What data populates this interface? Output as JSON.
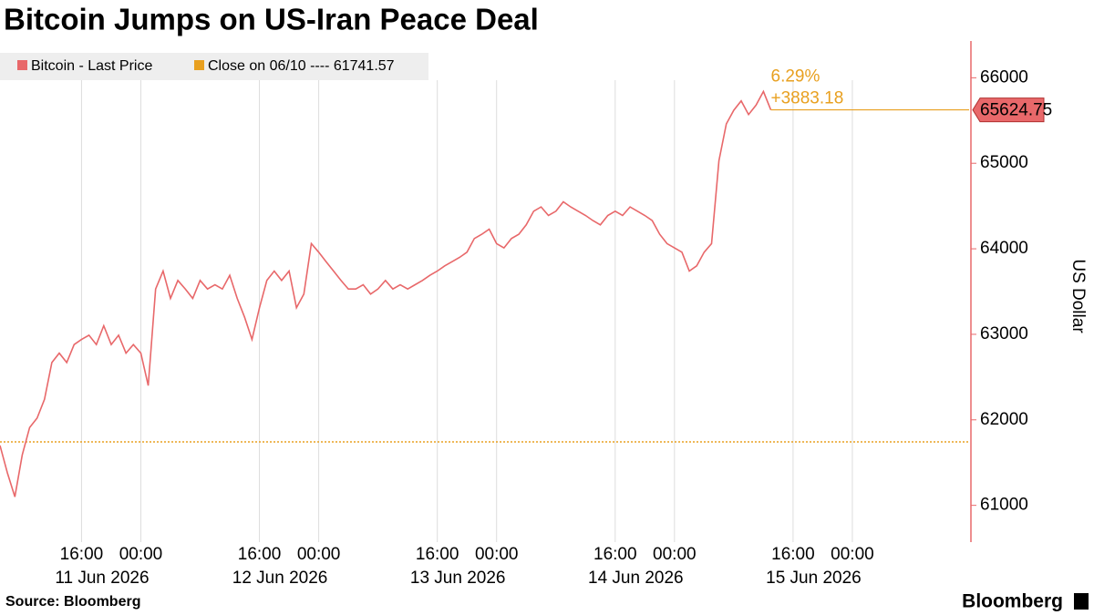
{
  "chart_data": {
    "type": "line",
    "title": "Bitcoin Jumps on US-Iran Peace Deal",
    "y_label": "US Dollar",
    "source": "Source: Bloomberg",
    "brand": "Bloomberg",
    "x": [
      "2026-06-11 05:00",
      "2026-06-11 06:00",
      "2026-06-11 07:00",
      "2026-06-11 08:00",
      "2026-06-11 09:00",
      "2026-06-11 10:00",
      "2026-06-11 11:00",
      "2026-06-11 12:00",
      "2026-06-11 13:00",
      "2026-06-11 14:00",
      "2026-06-11 15:00",
      "2026-06-11 16:00",
      "2026-06-11 17:00",
      "2026-06-11 18:00",
      "2026-06-11 19:00",
      "2026-06-11 20:00",
      "2026-06-11 21:00",
      "2026-06-11 22:00",
      "2026-06-11 23:00",
      "2026-06-12 00:00",
      "2026-06-12 01:00",
      "2026-06-12 02:00",
      "2026-06-12 03:00",
      "2026-06-12 04:00",
      "2026-06-12 05:00",
      "2026-06-12 06:00",
      "2026-06-12 07:00",
      "2026-06-12 08:00",
      "2026-06-12 09:00",
      "2026-06-12 10:00",
      "2026-06-12 11:00",
      "2026-06-12 12:00",
      "2026-06-12 13:00",
      "2026-06-12 14:00",
      "2026-06-12 15:00",
      "2026-06-12 16:00",
      "2026-06-12 17:00",
      "2026-06-12 18:00",
      "2026-06-12 19:00",
      "2026-06-12 20:00",
      "2026-06-12 21:00",
      "2026-06-12 22:00",
      "2026-06-12 23:00",
      "2026-06-13 00:00",
      "2026-06-13 01:00",
      "2026-06-13 02:00",
      "2026-06-13 03:00",
      "2026-06-13 04:00",
      "2026-06-13 05:00",
      "2026-06-13 06:00",
      "2026-06-13 07:00",
      "2026-06-13 08:00",
      "2026-06-13 09:00",
      "2026-06-13 10:00",
      "2026-06-13 11:00",
      "2026-06-13 12:00",
      "2026-06-13 13:00",
      "2026-06-13 14:00",
      "2026-06-13 15:00",
      "2026-06-13 16:00",
      "2026-06-13 17:00",
      "2026-06-13 18:00",
      "2026-06-13 19:00",
      "2026-06-13 20:00",
      "2026-06-13 21:00",
      "2026-06-13 22:00",
      "2026-06-13 23:00",
      "2026-06-14 00:00",
      "2026-06-14 01:00",
      "2026-06-14 02:00",
      "2026-06-14 03:00",
      "2026-06-14 04:00",
      "2026-06-14 05:00",
      "2026-06-14 06:00",
      "2026-06-14 07:00",
      "2026-06-14 08:00",
      "2026-06-14 09:00",
      "2026-06-14 10:00",
      "2026-06-14 11:00",
      "2026-06-14 12:00",
      "2026-06-14 13:00",
      "2026-06-14 14:00",
      "2026-06-14 15:00",
      "2026-06-14 16:00",
      "2026-06-14 17:00",
      "2026-06-14 18:00",
      "2026-06-14 19:00",
      "2026-06-14 20:00",
      "2026-06-14 21:00",
      "2026-06-14 22:00",
      "2026-06-14 23:00",
      "2026-06-15 00:00",
      "2026-06-15 01:00",
      "2026-06-15 02:00",
      "2026-06-15 03:00",
      "2026-06-15 04:00",
      "2026-06-15 05:00",
      "2026-06-15 06:00",
      "2026-06-15 07:00",
      "2026-06-15 08:00",
      "2026-06-15 09:00",
      "2026-06-15 10:00",
      "2026-06-15 11:00",
      "2026-06-15 12:00",
      "2026-06-15 13:00"
    ],
    "series": [
      {
        "name": "Bitcoin - Last Price",
        "color": "#e8686a",
        "values": [
          61700,
          61380,
          61100,
          61590,
          61910,
          62020,
          62240,
          62670,
          62780,
          62670,
          62880,
          62940,
          62990,
          62880,
          63100,
          62880,
          62990,
          62780,
          62880,
          62780,
          62400,
          63530,
          63740,
          63420,
          63630,
          63530,
          63420,
          63630,
          63530,
          63580,
          63530,
          63690,
          63420,
          63200,
          62940,
          63310,
          63630,
          63740,
          63630,
          63740,
          63310,
          63470,
          64060,
          63960,
          63850,
          63740,
          63630,
          63530,
          63530,
          63580,
          63470,
          63530,
          63630,
          63530,
          63580,
          63530,
          63580,
          63630,
          63690,
          63740,
          63800,
          63850,
          63900,
          63960,
          64120,
          64170,
          64230,
          64060,
          64010,
          64120,
          64170,
          64280,
          64440,
          64490,
          64390,
          64440,
          64550,
          64490,
          64440,
          64390,
          64330,
          64280,
          64390,
          64440,
          64390,
          64490,
          64440,
          64390,
          64330,
          64170,
          64060,
          64010,
          63960,
          63740,
          63800,
          63960,
          64060,
          65030,
          65460,
          65620,
          65730,
          65570,
          65680,
          65840,
          65624.75
        ]
      }
    ],
    "reference": {
      "name": "Close on 06/10 ---- 61741.57",
      "value": 61741.57,
      "color": "#e8a020"
    },
    "annotations": {
      "change_pct": "6.29%",
      "change_abs": "+3883.18",
      "last_value": "65624.75"
    },
    "xlim": [
      "2026-06-11 05:00",
      "2026-06-16 15:45"
    ],
    "xticks": [
      {
        "value": "2026-06-11 16:00",
        "label": "16:00"
      },
      {
        "value": "2026-06-12 00:00",
        "label": "00:00"
      },
      {
        "value": "2026-06-12 16:00",
        "label": "16:00"
      },
      {
        "value": "2026-06-13 00:00",
        "label": "00:00"
      },
      {
        "value": "2026-06-13 16:00",
        "label": "16:00"
      },
      {
        "value": "2026-06-14 00:00",
        "label": "00:00"
      },
      {
        "value": "2026-06-14 16:00",
        "label": "16:00"
      },
      {
        "value": "2026-06-15 00:00",
        "label": "00:00"
      },
      {
        "value": "2026-06-15 16:00",
        "label": "16:00"
      },
      {
        "value": "2026-06-16 00:00",
        "label": "00:00"
      }
    ],
    "date_labels": [
      "11 Jun 2026",
      "12 Jun 2026",
      "13 Jun 2026",
      "14 Jun 2026",
      "15 Jun 2026"
    ],
    "ylim": [
      60570,
      66430
    ],
    "yticks": [
      61000,
      62000,
      63000,
      64000,
      65000,
      66000
    ]
  }
}
